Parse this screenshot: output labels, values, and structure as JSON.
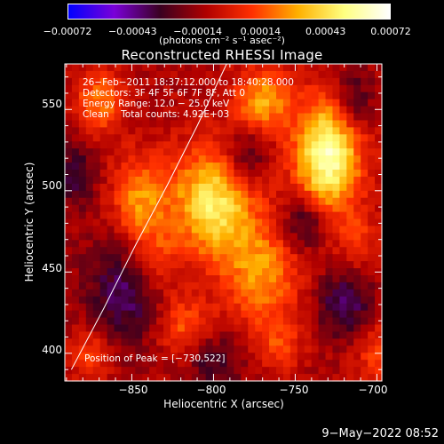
{
  "chart_data": {
    "type": "heatmap",
    "title": "Reconstructed RHESSI Image",
    "xlabel": "Heliocentric X (arcsec)",
    "ylabel": "Heliocentric Y (arcsec)",
    "xlim": [
      -891,
      -697
    ],
    "ylim": [
      383,
      578
    ],
    "x_ticks": [
      -850,
      -800,
      -750,
      -700
    ],
    "y_ticks": [
      400,
      450,
      500,
      550
    ],
    "x_tick_labels": [
      "−850",
      "−800",
      "−750",
      "−700"
    ],
    "y_tick_labels": [
      "400",
      "450",
      "500",
      "550"
    ],
    "colorbar": {
      "tick_values": [
        -0.00072,
        -0.00043,
        -0.00014,
        0.00014,
        0.00043,
        0.00072
      ],
      "tick_labels": [
        "−0.00072",
        "−0.00043",
        "−0.00014",
        "0.00014",
        "0.00043",
        "0.00072"
      ],
      "units_label": "(photons cm⁻² s⁻¹ asec⁻²)",
      "range": [
        -0.00072,
        0.00072
      ],
      "colors": [
        "#0000ff",
        "#7a00d8",
        "#3a0020",
        "#b00000",
        "#ff3000",
        "#ffb000",
        "#ffff80",
        "#ffffff"
      ]
    },
    "annotations": [
      "26−Feb−2011 18:37:12.000 to 18:40:28.000",
      "Detectors: 3F 4F 5F 6F 7F 8F, Att 0",
      "Energy Range: 12.0 − 25.0 keV",
      "Clean    Total counts: 4.92E+03",
      "Position of Peak = [−730,522]"
    ],
    "peak": {
      "x": -730,
      "y": 522
    },
    "limb_points": [
      [
        -887,
        390
      ],
      [
        -867,
        428
      ],
      [
        -848,
        466
      ],
      [
        -828,
        504
      ],
      [
        -810,
        540
      ],
      [
        -792,
        578
      ]
    ],
    "sources": [
      {
        "x": -730,
        "y": 522,
        "sx": 14,
        "sy": 24,
        "amp": 0.00072
      },
      {
        "x": -800,
        "y": 492,
        "sx": 18,
        "sy": 24,
        "amp": 0.00058
      },
      {
        "x": -770,
        "y": 555,
        "sx": 12,
        "sy": 14,
        "amp": 0.0004
      },
      {
        "x": -845,
        "y": 492,
        "sx": 12,
        "sy": 20,
        "amp": 0.00038
      },
      {
        "x": -870,
        "y": 555,
        "sx": 10,
        "sy": 14,
        "amp": 0.00032
      },
      {
        "x": -770,
        "y": 448,
        "sx": 16,
        "sy": 22,
        "amp": 0.00036
      },
      {
        "x": -820,
        "y": 418,
        "sx": 12,
        "sy": 14,
        "amp": 0.0003
      },
      {
        "x": -835,
        "y": 455,
        "sx": 10,
        "sy": 14,
        "amp": 0.00028
      },
      {
        "x": -875,
        "y": 400,
        "sx": 9,
        "sy": 12,
        "amp": 0.00022
      },
      {
        "x": -760,
        "y": 405,
        "sx": 10,
        "sy": 10,
        "amp": 0.0002
      },
      {
        "x": -700,
        "y": 400,
        "sx": 9,
        "sy": 14,
        "amp": 0.00022
      },
      {
        "x": -712,
        "y": 470,
        "sx": 8,
        "sy": 12,
        "amp": 0.00018
      },
      {
        "x": -850,
        "y": 440,
        "sx": 20,
        "sy": 25,
        "amp": -0.0003
      },
      {
        "x": -780,
        "y": 520,
        "sx": 10,
        "sy": 14,
        "amp": -0.00026
      },
      {
        "x": -745,
        "y": 480,
        "sx": 9,
        "sy": 12,
        "amp": -0.0003
      },
      {
        "x": -715,
        "y": 555,
        "sx": 9,
        "sy": 14,
        "amp": -0.00026
      },
      {
        "x": -885,
        "y": 510,
        "sx": 9,
        "sy": 14,
        "amp": -0.00024
      },
      {
        "x": -720,
        "y": 430,
        "sx": 12,
        "sy": 14,
        "amp": -0.0003
      },
      {
        "x": -800,
        "y": 395,
        "sx": 12,
        "sy": 12,
        "amp": -0.00022
      }
    ]
  },
  "timestamp": "9−May−2022 08:52"
}
